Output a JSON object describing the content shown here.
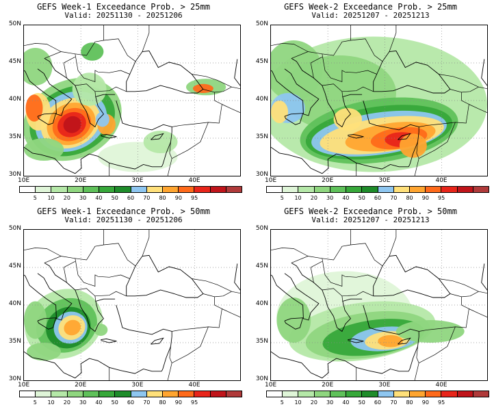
{
  "panels": [
    {
      "title": "GEFS Week-1 Exceedance Prob. > 25mm",
      "valid": "Valid: 20251130 - 20251206",
      "threshold": 25,
      "week": 1
    },
    {
      "title": "GEFS Week-2 Exceedance Prob. > 25mm",
      "valid": "Valid: 20251207 - 20251213",
      "threshold": 25,
      "week": 2
    },
    {
      "title": "GEFS Week-1 Exceedance Prob. > 50mm",
      "valid": "Valid: 20251130 - 20251206",
      "threshold": 50,
      "week": 1
    },
    {
      "title": "GEFS Week-2 Exceedance Prob. > 50mm",
      "valid": "Valid: 20251207 - 20251213",
      "threshold": 50,
      "week": 2
    }
  ],
  "axes": {
    "lat_labels": [
      "50N",
      "45N",
      "40N",
      "35N",
      "30N"
    ],
    "lat_values": [
      50,
      45,
      40,
      35,
      30
    ],
    "lon_labels": [
      "10E",
      "20E",
      "30E",
      "40E"
    ],
    "lon_values": [
      10,
      20,
      30,
      40
    ],
    "lon_range": [
      10,
      48
    ],
    "lat_range": [
      30,
      50
    ]
  },
  "colorbar": {
    "labels": [
      "5",
      "10",
      "20",
      "30",
      "40",
      "50",
      "60",
      "70",
      "80",
      "90",
      "95"
    ],
    "colors": [
      "#ffffff",
      "#dff5d8",
      "#b5e8a8",
      "#8fd67f",
      "#5fc15a",
      "#37a83a",
      "#1e8c2a",
      "#8ec6f0",
      "#ffe07a",
      "#ffa530",
      "#ff6a1a",
      "#e8251a",
      "#c0141a",
      "#b03a3a"
    ]
  }
}
